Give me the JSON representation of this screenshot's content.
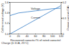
{
  "chart_data": {
    "type": "line",
    "caption": "Charge (0.1CA, 25°C)",
    "x_label": "Recovered capacity (% of rated capacity)",
    "y_label": "Cell terminal voltage (V)",
    "y2_label": "Charge current (CA)",
    "x": [
      0,
      20,
      40,
      60,
      80,
      100,
      120
    ],
    "xlim": [
      0,
      120
    ],
    "xticks": [
      0,
      20,
      40,
      60,
      80,
      100,
      120
    ],
    "ylim": [
      1.0,
      1.6
    ],
    "yticks": [
      {
        "value": 1.0,
        "label": "1.0"
      },
      1.2,
      1.4,
      {
        "value": 1.6,
        "label": "1.6"
      }
    ],
    "y2lim": [
      0,
      0.2
    ],
    "y2ticks": [
      0,
      0.1,
      0.2
    ],
    "series": [
      {
        "name": "Voltage",
        "color": "#2f78c4",
        "values": [
          1.35,
          1.4,
          1.42,
          1.44,
          1.46,
          1.48,
          1.49
        ]
      },
      {
        "name": "Current",
        "color": "#2f78c4",
        "axis": "y2",
        "values": [
          0.0,
          0.03,
          0.06,
          0.09,
          0.12,
          0.15,
          0.18
        ]
      }
    ]
  }
}
